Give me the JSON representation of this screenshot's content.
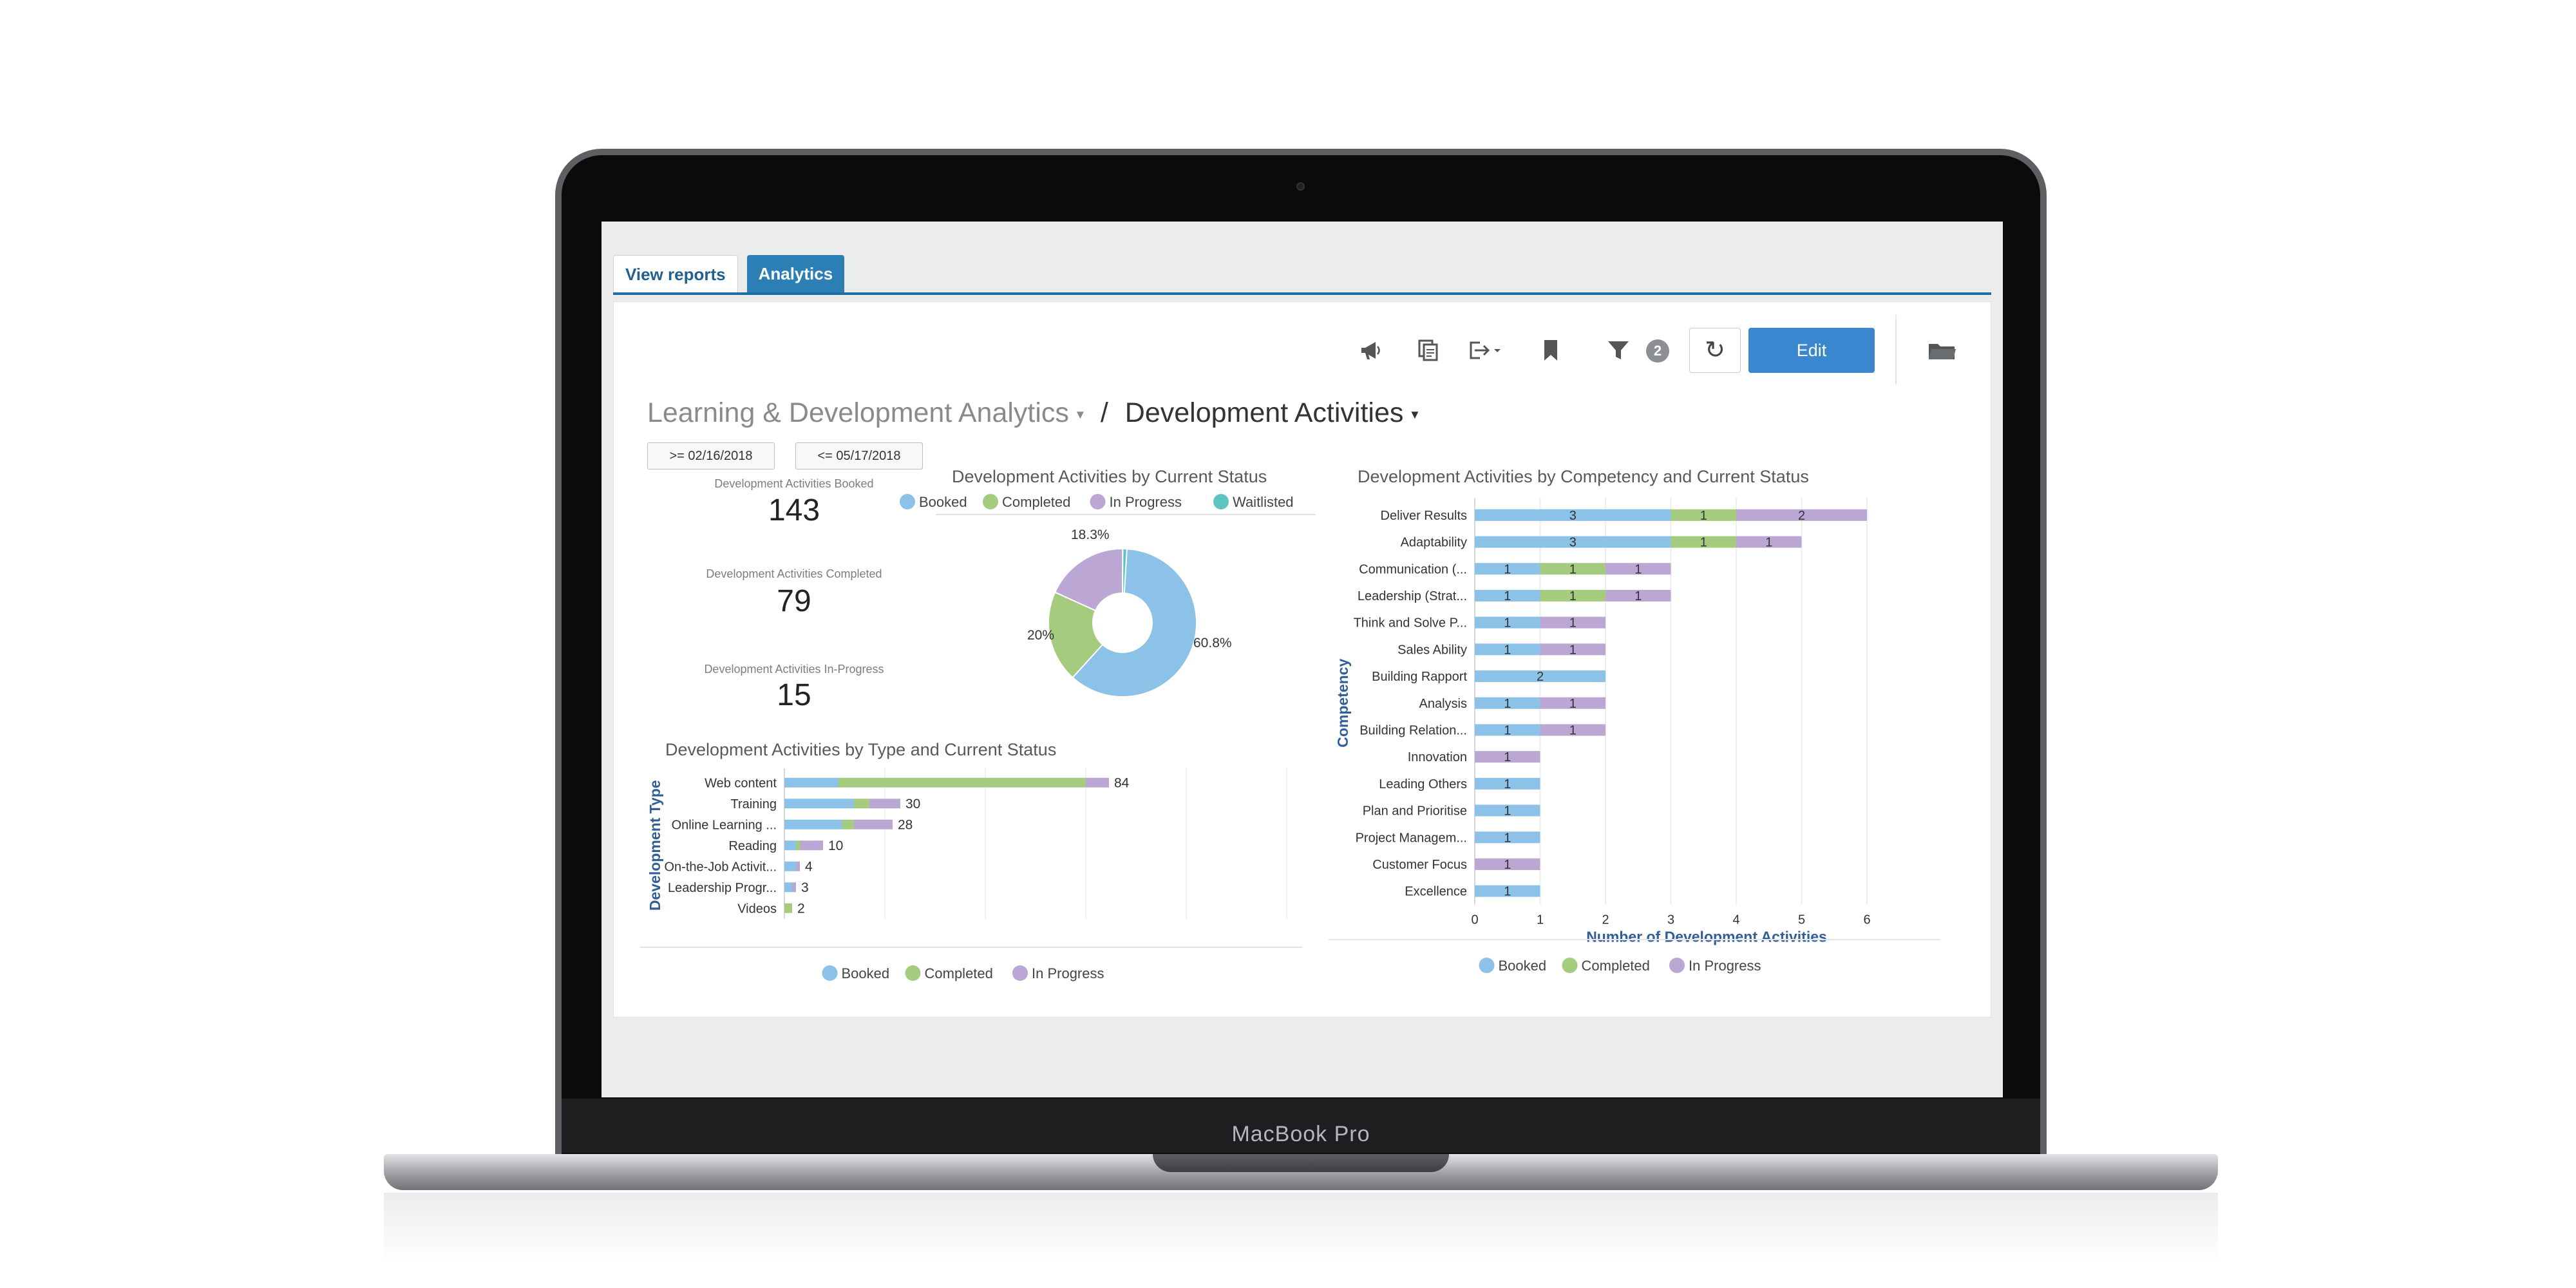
{
  "device": {
    "label": "MacBook Pro"
  },
  "tabs": [
    {
      "label": "View reports",
      "active": false
    },
    {
      "label": "Analytics",
      "active": true
    }
  ],
  "toolbar": {
    "icons": [
      "megaphone-icon",
      "copy-icon",
      "export-icon",
      "bookmark-icon",
      "filter-icon"
    ],
    "filter_count": "2",
    "refresh_icon": "↻",
    "edit_label": "Edit",
    "folder_icon": "folder-icon"
  },
  "breadcrumb": {
    "parent": "Learning & Development Analytics",
    "separator": "/",
    "current": "Development Activities",
    "caret": "▾"
  },
  "filters": [
    ">= 02/16/2018",
    "<= 05/17/2018"
  ],
  "kpis": [
    {
      "label": "Development Activities Booked",
      "value": "143"
    },
    {
      "label": "Development Activities Completed",
      "value": "79"
    },
    {
      "label": "Development Activities In-Progress",
      "value": "15"
    }
  ],
  "colors": {
    "Booked": "#8cc1e8",
    "Completed": "#a5cc7e",
    "In Progress": "#bba6d4",
    "Waitlisted": "#5ec4bf",
    "accent": "#3a87cf",
    "axis_title": "#2f5f96"
  },
  "chart_data": [
    {
      "id": "by_status",
      "type": "pie",
      "title": "Development Activities by Current Status",
      "legend": [
        "Booked",
        "Completed",
        "In Progress",
        "Waitlisted"
      ],
      "legend_position": "top",
      "slices": [
        {
          "name": "Booked",
          "value": 60.8,
          "label": "60.8%"
        },
        {
          "name": "Completed",
          "value": 20,
          "label": "20%"
        },
        {
          "name": "In Progress",
          "value": 18.3,
          "label": "18.3%"
        },
        {
          "name": "Waitlisted",
          "value": 0.9,
          "label": ""
        }
      ]
    },
    {
      "id": "by_type",
      "type": "bar",
      "orientation": "horizontal",
      "stacked": true,
      "title": "Development Activities by Type and Current Status",
      "ylabel": "Development Type",
      "xlabel": "",
      "xlim": [
        0,
        100
      ],
      "legend": [
        "Booked",
        "Completed",
        "In Progress"
      ],
      "legend_position": "bottom",
      "categories": [
        "Web content",
        "Training",
        "Online Learning ...",
        "Reading",
        "On-the-Job Activit...",
        "Leadership Progr...",
        "Videos"
      ],
      "series": [
        {
          "name": "Booked",
          "values": [
            14,
            18,
            15,
            3,
            3,
            2,
            0
          ]
        },
        {
          "name": "Completed",
          "values": [
            64,
            4,
            3,
            1,
            0,
            0,
            2
          ]
        },
        {
          "name": "In Progress",
          "values": [
            6,
            8,
            10,
            6,
            1,
            1,
            0
          ]
        }
      ],
      "totals": [
        "84",
        "30",
        "28",
        "10",
        "4",
        "3",
        "2"
      ],
      "grid": true
    },
    {
      "id": "by_competency",
      "type": "bar",
      "orientation": "horizontal",
      "stacked": true,
      "title": "Development Activities by Competency and Current Status",
      "ylabel": "Competency",
      "xlabel": "Number of Development Activities",
      "xlim": [
        0,
        7
      ],
      "xticks": [
        "0",
        "1",
        "2",
        "3",
        "4",
        "5",
        "6"
      ],
      "legend": [
        "Booked",
        "Completed",
        "In Progress"
      ],
      "legend_position": "bottom",
      "categories": [
        "Deliver Results",
        "Adaptability",
        "Communication (...",
        "Leadership (Strat...",
        "Think and Solve P...",
        "Sales Ability",
        "Building Rapport",
        "Analysis",
        "Building Relation...",
        "Innovation",
        "Leading Others",
        "Plan and Prioritise",
        "Project Managem...",
        "Customer Focus",
        "Excellence"
      ],
      "series": [
        {
          "name": "Booked",
          "values": [
            3,
            3,
            1,
            1,
            1,
            1,
            2,
            1,
            1,
            0,
            1,
            1,
            1,
            0,
            1
          ]
        },
        {
          "name": "Completed",
          "values": [
            1,
            1,
            1,
            1,
            0,
            0,
            0,
            0,
            0,
            0,
            0,
            0,
            0,
            0,
            0
          ]
        },
        {
          "name": "In Progress",
          "values": [
            2,
            1,
            1,
            1,
            1,
            1,
            0,
            1,
            1,
            1,
            0,
            0,
            0,
            1,
            0
          ]
        }
      ],
      "grid": true
    }
  ]
}
